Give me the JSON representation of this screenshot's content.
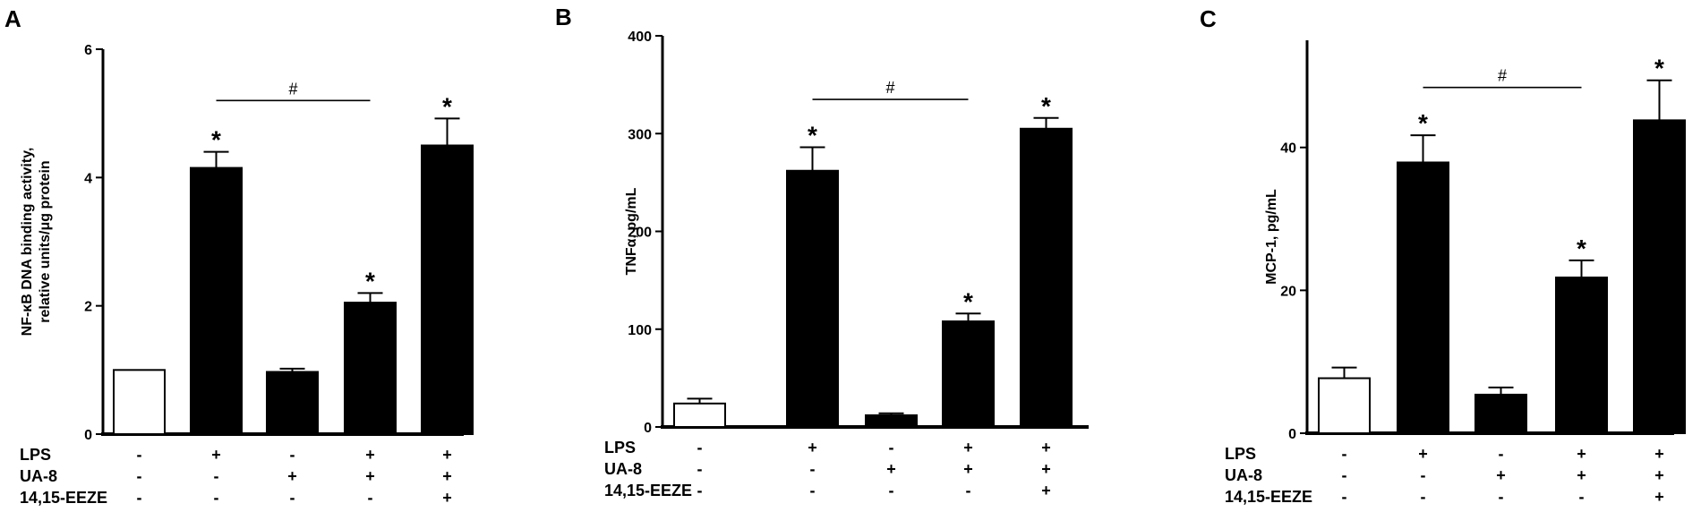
{
  "chart_data": [
    {
      "type": "bar",
      "panel": "A",
      "ylabel_lines": [
        "NF-κB DNA binding activity,",
        "relative units/μg protein"
      ],
      "ylim": [
        0,
        6
      ],
      "yticks": [
        0,
        2,
        4,
        6
      ],
      "ytick_labels": [
        "0",
        "2",
        "4",
        "6"
      ],
      "bars": [
        {
          "value": 1.0,
          "error": 0,
          "fill": "#ffffff",
          "star": ""
        },
        {
          "value": 4.15,
          "error": 0.25,
          "fill": "#000000",
          "star": "*"
        },
        {
          "value": 0.97,
          "error": 0.05,
          "fill": "#000000",
          "star": ""
        },
        {
          "value": 2.05,
          "error": 0.15,
          "fill": "#000000",
          "star": "*"
        },
        {
          "value": 4.5,
          "error": 0.42,
          "fill": "#000000",
          "star": "*"
        }
      ],
      "bracket": {
        "from": 1,
        "to": 3,
        "label": "#",
        "y": 5.2
      }
    },
    {
      "type": "bar",
      "panel": "B",
      "ylabel_lines": [
        "TNFα, pg/mL"
      ],
      "ylim": [
        0,
        400
      ],
      "yticks": [
        0,
        100,
        200,
        300,
        400
      ],
      "ytick_labels": [
        "0",
        "100",
        "200",
        "300",
        "400"
      ],
      "bars": [
        {
          "value": 24,
          "error": 5,
          "fill": "#ffffff",
          "star": ""
        },
        {
          "value": 262,
          "error": 24,
          "fill": "#000000",
          "star": "*"
        },
        {
          "value": 12,
          "error": 2,
          "fill": "#000000",
          "star": ""
        },
        {
          "value": 108,
          "error": 8,
          "fill": "#000000",
          "star": "*"
        },
        {
          "value": 305,
          "error": 11,
          "fill": "#000000",
          "star": "*"
        }
      ],
      "bracket": {
        "from": 1,
        "to": 3,
        "label": "#",
        "y": 335
      }
    },
    {
      "type": "bar",
      "panel": "C",
      "ylabel_lines": [
        "MCP-1, pg/mL"
      ],
      "ylim": [
        0,
        55
      ],
      "yticks": [
        0,
        20,
        40
      ],
      "ytick_labels": [
        "0",
        "20",
        "40"
      ],
      "bars": [
        {
          "value": 7.7,
          "error": 1.5,
          "fill": "#ffffff",
          "star": ""
        },
        {
          "value": 37.9,
          "error": 3.8,
          "fill": "#000000",
          "star": "*"
        },
        {
          "value": 5.4,
          "error": 1.0,
          "fill": "#000000",
          "star": ""
        },
        {
          "value": 21.8,
          "error": 2.4,
          "fill": "#000000",
          "star": "*"
        },
        {
          "value": 43.8,
          "error": 5.6,
          "fill": "#000000",
          "star": "*"
        }
      ],
      "bracket": {
        "from": 1,
        "to": 3,
        "label": "#",
        "y": 48.4
      }
    }
  ],
  "conditions": [
    {
      "label": "LPS",
      "signs": [
        "-",
        "+",
        "-",
        "+",
        "+"
      ]
    },
    {
      "label": "UA-8",
      "signs": [
        "-",
        "-",
        "+",
        "+",
        "+"
      ]
    },
    {
      "label": "14,15-EEZE",
      "signs": [
        "-",
        "-",
        "-",
        "-",
        "+"
      ]
    }
  ]
}
